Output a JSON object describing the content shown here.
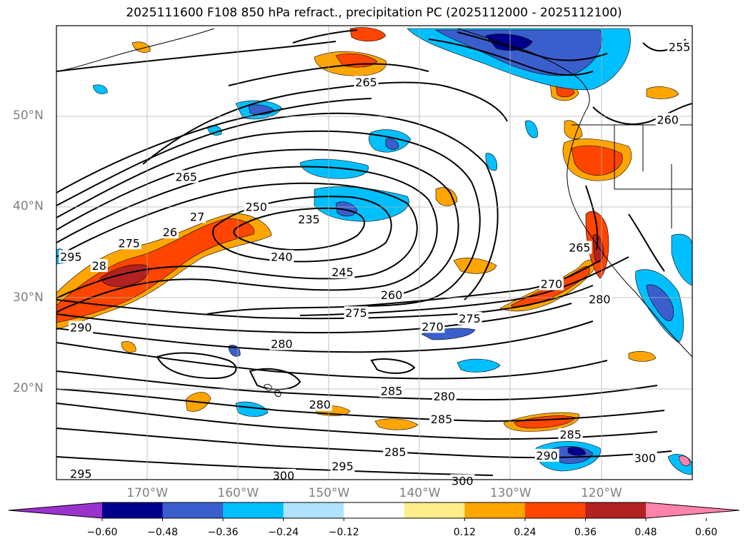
{
  "title": "2025111600 F108 850 hPa refract., precipitation PC (2025112000 - 2025112100)",
  "map": {
    "lon_range": [
      -180,
      -110
    ],
    "lat_range": [
      10,
      60
    ],
    "lat_labels": [
      {
        "lat": 50,
        "text": "50°N"
      },
      {
        "lat": 40,
        "text": "40°N"
      },
      {
        "lat": 30,
        "text": "30°N"
      },
      {
        "lat": 20,
        "text": "20°N"
      }
    ],
    "lon_labels": [
      {
        "lon": -170,
        "text": "170°W"
      },
      {
        "lon": -160,
        "text": "160°W"
      },
      {
        "lon": -150,
        "text": "150°W"
      },
      {
        "lon": -140,
        "text": "140°W"
      },
      {
        "lon": -130,
        "text": "130°W"
      },
      {
        "lon": -120,
        "text": "120°W"
      }
    ],
    "contour_labels": [
      {
        "text": "265",
        "lon": -165.7,
        "lat": 43.3
      },
      {
        "text": "265",
        "lon": -145.9,
        "lat": 53.7
      },
      {
        "text": "265",
        "lon": -122.4,
        "lat": 35.5
      },
      {
        "text": "260",
        "lon": -112.7,
        "lat": 49.6
      },
      {
        "text": "255",
        "lon": -111.4,
        "lat": 57.6
      },
      {
        "text": "235",
        "lon": -152.2,
        "lat": 38.6
      },
      {
        "text": "240",
        "lon": -155.2,
        "lat": 34.5
      },
      {
        "text": "245",
        "lon": -148.5,
        "lat": 32.8
      },
      {
        "text": "250",
        "lon": -158.0,
        "lat": 40.0
      },
      {
        "text": "260",
        "lon": -143.1,
        "lat": 30.3
      },
      {
        "text": "270",
        "lon": -125.5,
        "lat": 31.5
      },
      {
        "text": "270",
        "lon": -138.6,
        "lat": 26.8
      },
      {
        "text": "275",
        "lon": -147.0,
        "lat": 28.3
      },
      {
        "text": "275",
        "lon": -134.5,
        "lat": 27.7
      },
      {
        "text": "275",
        "lon": -172.0,
        "lat": 36.0
      },
      {
        "text": "280",
        "lon": -120.2,
        "lat": 29.8
      },
      {
        "text": "280",
        "lon": -155.2,
        "lat": 24.9
      },
      {
        "text": "280",
        "lon": -151.0,
        "lat": 18.2
      },
      {
        "text": "280",
        "lon": -137.3,
        "lat": 19.1
      },
      {
        "text": "285",
        "lon": -143.1,
        "lat": 19.7
      },
      {
        "text": "285",
        "lon": -137.6,
        "lat": 16.6
      },
      {
        "text": "285",
        "lon": -123.4,
        "lat": 14.9
      },
      {
        "text": "285",
        "lon": -142.7,
        "lat": 13.0
      },
      {
        "text": "290",
        "lon": -177.3,
        "lat": 26.7
      },
      {
        "text": "290",
        "lon": -126.0,
        "lat": 12.6
      },
      {
        "text": "295",
        "lon": -178.4,
        "lat": 34.5
      },
      {
        "text": "295",
        "lon": -177.3,
        "lat": 10.6
      },
      {
        "text": "295",
        "lon": -148.5,
        "lat": 11.4
      },
      {
        "text": "300",
        "lon": -155.0,
        "lat": 10.4
      },
      {
        "text": "300",
        "lon": -135.3,
        "lat": 9.8
      },
      {
        "text": "300",
        "lon": -115.2,
        "lat": 12.3
      },
      {
        "text": "26",
        "lon": -167.5,
        "lat": 37.2
      },
      {
        "text": "27",
        "lon": -164.5,
        "lat": 38.9
      },
      {
        "text": "28",
        "lon": -175.3,
        "lat": 33.5
      }
    ]
  },
  "colorbar": {
    "colors": [
      "#9a32cd",
      "#00008b",
      "#3a5fcd",
      "#00bfff",
      "#b0e2ff",
      "#ffffff",
      "#ffec8b",
      "#ffa500",
      "#ff4500",
      "#b22222",
      "#ff82ab"
    ],
    "ticks": [
      "−0.60",
      "−0.48",
      "−0.36",
      "−0.24",
      "−0.12",
      "0.12",
      "0.24",
      "0.36",
      "0.48",
      "0.60"
    ]
  }
}
